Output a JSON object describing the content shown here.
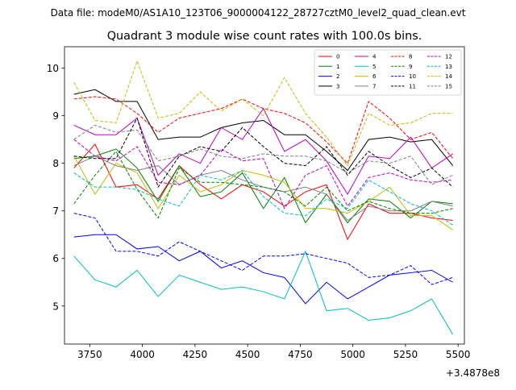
{
  "suptitle": "Data file: modeM0/AS1A10_123T06_9000004122_28727cztM0_level2_quad_clean.evt",
  "chart_data": {
    "type": "line",
    "title": "Quadrant 3 module wise count rates with 100.0s bins.",
    "xlabel": "",
    "ylabel": "",
    "offset_text": "+3.4878e8",
    "xlim": [
      3630,
      5530
    ],
    "ylim": [
      4.2,
      10.45
    ],
    "xticks": [
      3750,
      4000,
      4250,
      4500,
      4750,
      5000,
      5250,
      5500
    ],
    "yticks": [
      5,
      6,
      7,
      8,
      9,
      10
    ],
    "x": [
      3675,
      3775,
      3875,
      3975,
      4075,
      4175,
      4275,
      4375,
      4475,
      4575,
      4675,
      4775,
      4875,
      4975,
      5075,
      5175,
      5275,
      5375,
      5475
    ],
    "legend_position": "top-right",
    "series": [
      {
        "name": "0",
        "color": "#ff0000",
        "dash": false,
        "values": [
          7.9,
          8.4,
          7.5,
          7.55,
          7.25,
          7.95,
          7.55,
          7.25,
          7.55,
          7.4,
          7.1,
          7.4,
          7.55,
          6.4,
          7.15,
          6.95,
          6.95,
          6.85,
          6.8
        ]
      },
      {
        "name": "1",
        "color": "#008000",
        "dash": false,
        "values": [
          8.1,
          8.15,
          8.3,
          7.9,
          7.2,
          7.95,
          7.3,
          7.4,
          7.8,
          7.05,
          7.7,
          6.75,
          7.35,
          6.75,
          7.25,
          7.2,
          6.85,
          7.2,
          7.15
        ]
      },
      {
        "name": "2",
        "color": "#0000ff",
        "dash": false,
        "values": [
          6.45,
          6.5,
          6.5,
          6.2,
          6.25,
          5.95,
          6.15,
          5.8,
          5.95,
          5.7,
          5.6,
          5.05,
          5.5,
          5.15,
          5.4,
          5.65,
          5.7,
          5.75,
          5.5
        ]
      },
      {
        "name": "3",
        "color": "#000000",
        "dash": false,
        "values": [
          9.45,
          9.55,
          9.3,
          9.3,
          8.5,
          8.55,
          8.55,
          8.75,
          8.85,
          8.9,
          8.6,
          8.6,
          8.25,
          7.85,
          8.5,
          8.55,
          8.45,
          8.5,
          7.95
        ]
      },
      {
        "name": "4",
        "color": "#bf00bf",
        "dash": false,
        "values": [
          8.8,
          8.6,
          8.6,
          8.95,
          7.75,
          8.2,
          8.0,
          8.75,
          8.5,
          9.15,
          8.25,
          8.5,
          8.05,
          7.35,
          8.15,
          8.1,
          8.55,
          7.9,
          8.2
        ]
      },
      {
        "name": "5",
        "color": "#00bfbf",
        "dash": false,
        "values": [
          6.05,
          5.55,
          5.4,
          5.75,
          5.2,
          5.65,
          5.5,
          5.35,
          5.4,
          5.3,
          5.15,
          6.15,
          4.9,
          4.95,
          4.7,
          4.75,
          4.9,
          5.15,
          4.4
        ]
      },
      {
        "name": "6",
        "color": "#bfbf00",
        "dash": false,
        "values": [
          8.15,
          7.35,
          8.0,
          7.8,
          7.05,
          7.75,
          7.4,
          7.55,
          7.85,
          7.75,
          7.6,
          7.05,
          7.05,
          6.95,
          7.2,
          7.5,
          6.9,
          6.9,
          6.6
        ]
      },
      {
        "name": "7",
        "color": "#808080",
        "dash": false,
        "values": [
          7.95,
          8.15,
          7.95,
          7.85,
          7.95,
          7.55,
          7.75,
          7.85,
          7.65,
          7.5,
          7.4,
          7.5,
          7.35,
          6.8,
          7.1,
          7.0,
          7.0,
          7.2,
          7.1
        ]
      },
      {
        "name": "8",
        "color": "#ff0000",
        "dash": true,
        "values": [
          9.35,
          9.4,
          9.35,
          9.05,
          8.65,
          8.95,
          9.05,
          9.15,
          9.35,
          9.15,
          9.05,
          8.85,
          8.45,
          8.0,
          9.3,
          8.95,
          8.5,
          8.65,
          8.1
        ]
      },
      {
        "name": "9",
        "color": "#008000",
        "dash": true,
        "values": [
          7.15,
          7.75,
          8.25,
          7.45,
          6.85,
          7.9,
          7.6,
          7.6,
          7.55,
          7.5,
          7.4,
          7.1,
          7.5,
          7.0,
          7.2,
          7.05,
          6.95,
          6.95,
          7.05
        ]
      },
      {
        "name": "10",
        "color": "#0000ff",
        "dash": true,
        "values": [
          6.95,
          6.85,
          6.15,
          6.15,
          6.05,
          6.35,
          6.15,
          5.95,
          5.75,
          6.05,
          6.05,
          6.1,
          6.0,
          5.9,
          5.6,
          5.65,
          5.85,
          5.45,
          5.6
        ]
      },
      {
        "name": "11",
        "color": "#000000",
        "dash": true,
        "values": [
          8.15,
          8.1,
          8.1,
          8.95,
          7.5,
          8.15,
          8.35,
          8.25,
          8.75,
          8.35,
          8.0,
          7.95,
          8.35,
          7.75,
          8.25,
          7.95,
          7.7,
          7.9,
          7.5
        ]
      },
      {
        "name": "12",
        "color": "#bf00bf",
        "dash": true,
        "values": [
          8.5,
          8.15,
          8.05,
          8.35,
          7.6,
          7.55,
          7.75,
          8.3,
          8.05,
          8.1,
          7.05,
          7.75,
          7.95,
          7.1,
          7.7,
          7.8,
          7.65,
          7.6,
          7.65
        ]
      },
      {
        "name": "13",
        "color": "#00bfbf",
        "dash": true,
        "values": [
          7.8,
          7.5,
          7.5,
          7.45,
          7.25,
          7.1,
          7.75,
          7.65,
          7.85,
          7.3,
          6.95,
          6.9,
          7.25,
          7.05,
          7.65,
          7.4,
          7.15,
          7.0,
          6.7
        ]
      },
      {
        "name": "14",
        "color": "#bfbf00",
        "dash": true,
        "values": [
          9.7,
          8.9,
          8.85,
          10.15,
          8.95,
          9.05,
          9.5,
          9.1,
          9.35,
          9.0,
          9.8,
          9.05,
          8.55,
          7.95,
          9.05,
          8.8,
          8.85,
          9.05,
          9.05
        ]
      },
      {
        "name": "15",
        "color": "#808080",
        "dash": true,
        "values": [
          8.5,
          8.8,
          8.65,
          8.7,
          8.05,
          8.15,
          8.3,
          8.15,
          8.1,
          8.2,
          8.15,
          8.15,
          8.05,
          7.8,
          8.05,
          8.0,
          8.15,
          7.55,
          7.75
        ]
      }
    ]
  }
}
